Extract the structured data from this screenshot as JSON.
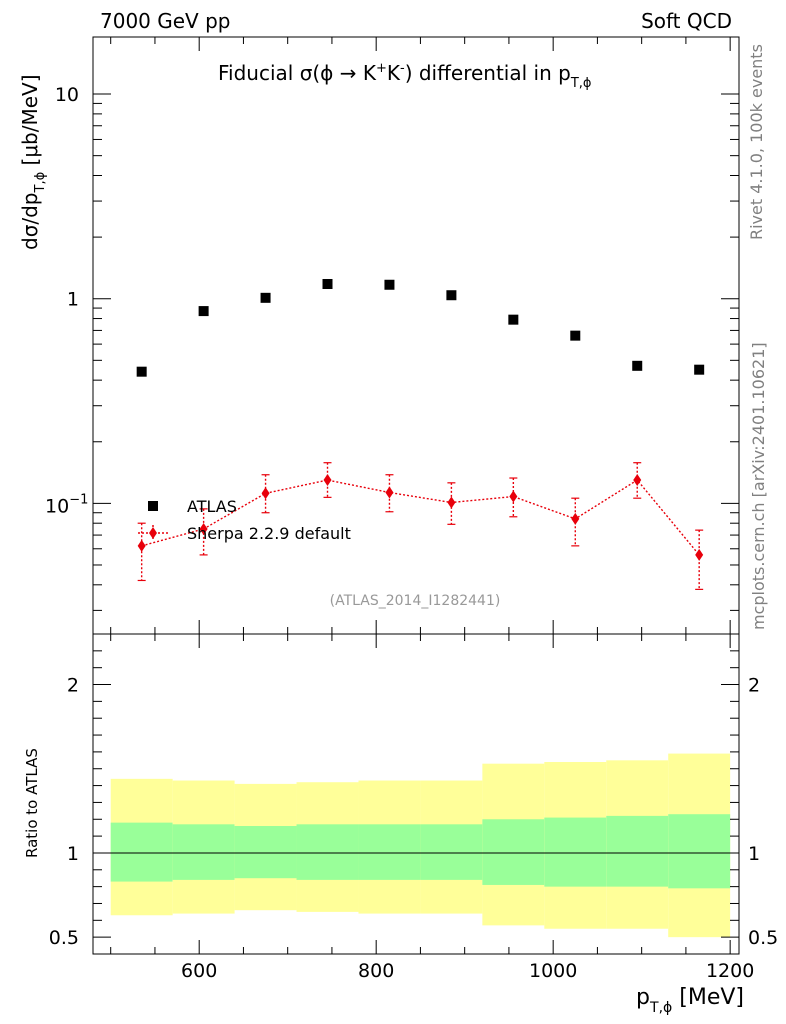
{
  "header": {
    "left": "7000 GeV pp",
    "right": "Soft QCD"
  },
  "side_labels": {
    "rivet": "Rivet 4.1.0,  100k events",
    "mcplots": "mcplots.cern.ch [arXiv:2401.10621]"
  },
  "chart_data": {
    "type": "scatter",
    "title": "Fiducial σ(ϕ → K⁺K⁻) differential in p_T,ϕ",
    "title_parts": {
      "pre": "Fiducial σ(ϕ →  K",
      "sup1": "+",
      "mid": "K",
      "sup2": "-",
      "post": ") differential in p",
      "sub": "T,ϕ"
    },
    "ylabel": {
      "main": "dσ/dp",
      "sub": "T,ϕ",
      "unit": " [μb/MeV]"
    },
    "xlabel": {
      "main": "p",
      "sub": "T,ϕ",
      "unit": " [MeV]"
    },
    "ratio_ylabel": "Ratio to ATLAS",
    "analysis_id": "(ATLAS_2014_I1282441)",
    "xlim": [
      480,
      1210
    ],
    "ylim_log": [
      0.023,
      19
    ],
    "ratio_ylim": [
      0.4,
      2.3
    ],
    "x_ticks": [
      "600",
      "800",
      "1000",
      "1200"
    ],
    "y_ticks": [
      "10",
      "1"
    ],
    "y_tick_minus1": {
      "base": "10",
      "exp": "−1"
    },
    "ratio_ticks": [
      "2",
      "1",
      "0.5"
    ],
    "legend": [
      "ATLAS",
      "Sherpa 2.2.9 default"
    ],
    "bin_edges": [
      500,
      570,
      640,
      710,
      780,
      850,
      920,
      990,
      1060,
      1130,
      1200
    ],
    "series": [
      {
        "name": "ATLAS",
        "x": [
          535,
          605,
          675,
          745,
          815,
          885,
          955,
          1025,
          1095,
          1165
        ],
        "values": [
          0.44,
          0.87,
          1.01,
          1.18,
          1.17,
          1.04,
          0.79,
          0.66,
          0.47,
          0.45
        ]
      },
      {
        "name": "Sherpa 2.2.9 default",
        "x": [
          535,
          605,
          675,
          745,
          815,
          885,
          955,
          1025,
          1095,
          1165
        ],
        "values": [
          0.062,
          0.075,
          0.112,
          0.13,
          0.113,
          0.101,
          0.108,
          0.084,
          0.13,
          0.056
        ],
        "err_low": [
          0.02,
          0.019,
          0.022,
          0.023,
          0.022,
          0.022,
          0.022,
          0.022,
          0.024,
          0.018
        ],
        "err_high": [
          0.018,
          0.019,
          0.026,
          0.028,
          0.025,
          0.025,
          0.025,
          0.022,
          0.028,
          0.018
        ]
      }
    ],
    "ratio_bands": {
      "inner_low": [
        0.83,
        0.84,
        0.85,
        0.84,
        0.84,
        0.84,
        0.81,
        0.8,
        0.8,
        0.79
      ],
      "inner_high": [
        1.18,
        1.17,
        1.16,
        1.17,
        1.17,
        1.17,
        1.2,
        1.21,
        1.22,
        1.23
      ],
      "outer_low": [
        0.63,
        0.64,
        0.66,
        0.65,
        0.64,
        0.64,
        0.57,
        0.55,
        0.55,
        0.5
      ],
      "outer_high": [
        1.44,
        1.43,
        1.41,
        1.42,
        1.43,
        1.43,
        1.53,
        1.54,
        1.55,
        1.59
      ]
    },
    "colors": {
      "data": "#000000",
      "mc": "#e8000b",
      "band_inner": "#99ff99",
      "band_outer": "#ffff99",
      "side_text": "#808080"
    }
  }
}
